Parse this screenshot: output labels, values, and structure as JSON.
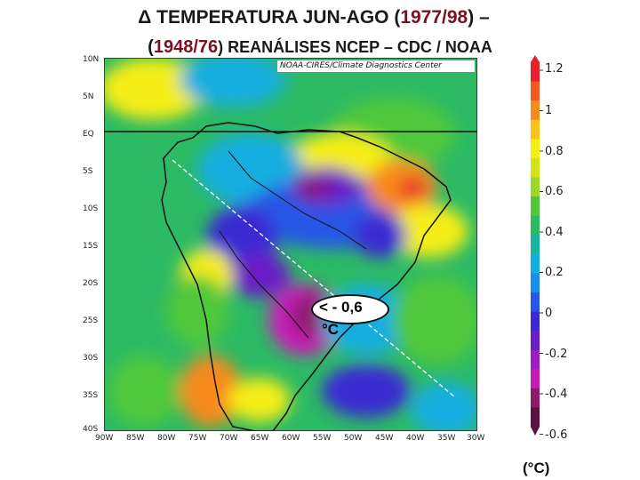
{
  "title": {
    "line1_prefix": "Δ TEMPERATURA JUN-AGO (",
    "line1_period": "1977/98",
    "line1_suffix": ") –",
    "line2_prefix": "(",
    "line2_period": "1948/76",
    "line2_suffix": ") REANÁLISES NCEP – CDC / NOAA"
  },
  "map": {
    "credit": "NOAA-CIRES/Climate Diagnostics Center",
    "latitudes": [
      "10N",
      "5N",
      "EQ",
      "5S",
      "10S",
      "15S",
      "20S",
      "25S",
      "30S",
      "35S",
      "40S"
    ],
    "longitudes": [
      "90W",
      "85W",
      "80W",
      "75W",
      "70W",
      "65W",
      "60W",
      "55W",
      "50W",
      "45W",
      "40W",
      "35W",
      "30W"
    ],
    "annotation": {
      "text": "< - 0,6",
      "unit": "°C"
    }
  },
  "colorbar": {
    "labels": [
      "1.2",
      "1",
      "0.8",
      "0.6",
      "0.4",
      "0.2",
      "0",
      "-0.2",
      "-0.4",
      "-0.6"
    ],
    "unit": "(°C)",
    "colors": [
      "#e8202a",
      "#f05a20",
      "#f78a1c",
      "#fbc21a",
      "#f5ee12",
      "#d2e414",
      "#9ad82a",
      "#4fc83a",
      "#2cba64",
      "#17b5a0",
      "#12aee0",
      "#168fe8",
      "#2856e6",
      "#3a2ad2",
      "#6a1ec6",
      "#9e1cc4",
      "#c81ab8",
      "#8e1a6e",
      "#5a1040"
    ]
  }
}
